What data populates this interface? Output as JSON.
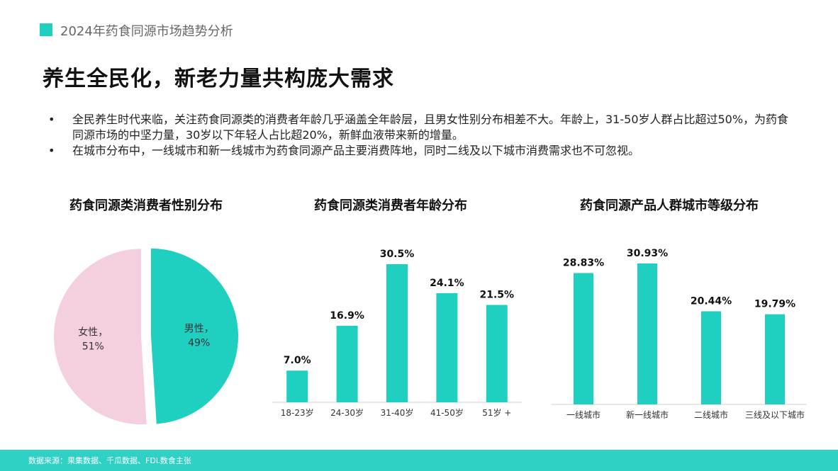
{
  "header": {
    "text": "2024年药食同源市场趋势分析"
  },
  "title": "养生全民化，新老力量共构庞大需求",
  "bullets": [
    "全民养生时代来临，关注药食同源类的消费者年龄几乎涵盖全年龄层，且男女性别分布相差不大。年龄上，31-50岁人群占比超过50%，为药食同源市场的中坚力量，30岁以下年轻人占比超20%，新鲜血液带来新的增量。",
    "在城市分布中，一线城市和新一线城市为药食同源产品主要消费阵地，同时二线及以下城市消费需求也不可忽视。"
  ],
  "bullet_symbol": "•",
  "colors": {
    "accent": "#1fd0c0",
    "female": "#f4cfe0",
    "bar": "#1fd0c0",
    "footer": "#2fd1c4"
  },
  "chart_data": [
    {
      "type": "pie",
      "title": "药食同源类消费者性别分布",
      "slices": [
        {
          "label": "男性，",
          "value": 49,
          "display": "49%"
        },
        {
          "label": "女性，",
          "value": 51,
          "display": "51%"
        }
      ]
    },
    {
      "type": "bar",
      "title": "药食同源类消费者年龄分布",
      "categories": [
        "18-23岁",
        "24-30岁",
        "31-40岁",
        "41-50岁",
        "51岁 +"
      ],
      "values": [
        7.0,
        16.9,
        30.5,
        24.1,
        21.5
      ],
      "labels": [
        "7.0%",
        "16.9%",
        "30.5%",
        "24.1%",
        "21.5%"
      ]
    },
    {
      "type": "bar",
      "title": "药食同源产品人群城市等级分布",
      "categories": [
        "一线城市",
        "新一线城市",
        "二线城市",
        "三线及以下城市"
      ],
      "values": [
        28.83,
        30.93,
        20.44,
        19.79
      ],
      "labels": [
        "28.83%",
        "30.93%",
        "20.44%",
        "19.79%"
      ]
    }
  ],
  "footer": {
    "source": "数据来源：果集数据、千瓜数据、FDL数食主张"
  }
}
